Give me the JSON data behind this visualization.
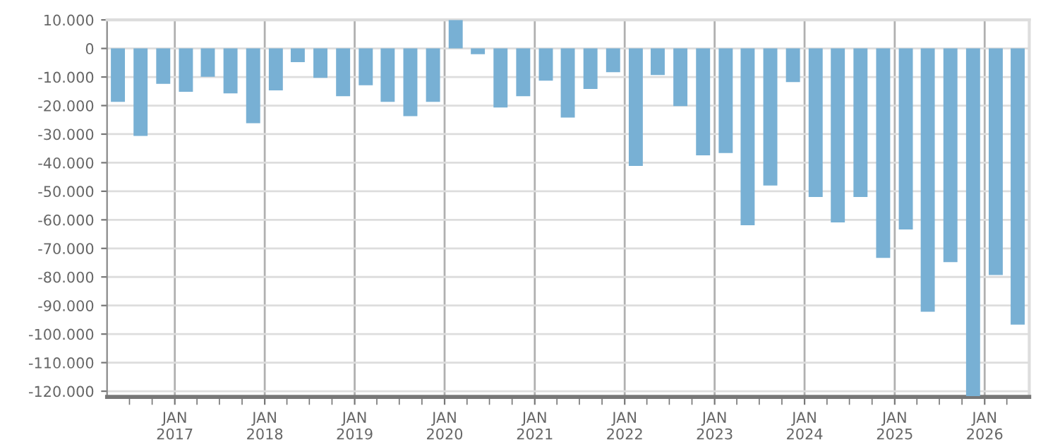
{
  "chart_data": {
    "type": "bar",
    "x": [
      "2016-05-15",
      "2016-08-15",
      "2016-11-15",
      "2017-02-15",
      "2017-05-15",
      "2017-08-15",
      "2017-11-15",
      "2018-02-15",
      "2018-05-15",
      "2018-08-15",
      "2018-11-15",
      "2019-02-15",
      "2019-05-15",
      "2019-08-15",
      "2019-11-15",
      "2020-02-15",
      "2020-05-15",
      "2020-08-15",
      "2020-11-15",
      "2021-02-15",
      "2021-05-15",
      "2021-08-15",
      "2021-11-15",
      "2022-02-15",
      "2022-05-15",
      "2022-08-15",
      "2022-11-15",
      "2023-02-15",
      "2023-05-15",
      "2023-08-15",
      "2023-11-15",
      "2024-02-15",
      "2024-05-15",
      "2024-08-15",
      "2024-11-15",
      "2025-02-15",
      "2025-05-15",
      "2025-08-15",
      "2025-11-15",
      "2026-02-15",
      "2026-05-15"
    ],
    "values": [
      -18700,
      -30600,
      -12400,
      -15200,
      -9900,
      -15700,
      -26200,
      -14700,
      -4800,
      -10300,
      -16700,
      -12900,
      -18700,
      -23700,
      -18700,
      10000,
      -2000,
      -20700,
      -16700,
      -11300,
      -24200,
      -14200,
      -8300,
      -41100,
      -9300,
      -20200,
      -37400,
      -36600,
      -61900,
      -48000,
      -11800,
      -52000,
      -60900,
      -52000,
      -73300,
      -63400,
      -92200,
      -74800,
      -121700,
      -79300,
      -96700
    ],
    "color": "#78b0d4",
    "xlim": [
      "2016-04-01",
      "2026-07-01"
    ],
    "xticks": [
      {
        "value": "2016-07-01",
        "label": null
      },
      {
        "value": "2016-10-01",
        "label": null
      },
      {
        "value": "2017-01-01",
        "label": "JAN\n2017"
      },
      {
        "value": "2017-04-01",
        "label": null
      },
      {
        "value": "2017-07-01",
        "label": null
      },
      {
        "value": "2017-10-01",
        "label": null
      },
      {
        "value": "2018-01-01",
        "label": "JAN\n2018"
      },
      {
        "value": "2018-04-01",
        "label": null
      },
      {
        "value": "2018-07-01",
        "label": null
      },
      {
        "value": "2018-10-01",
        "label": null
      },
      {
        "value": "2019-01-01",
        "label": "JAN\n2019"
      },
      {
        "value": "2019-04-01",
        "label": null
      },
      {
        "value": "2019-07-01",
        "label": null
      },
      {
        "value": "2019-10-01",
        "label": null
      },
      {
        "value": "2020-01-01",
        "label": "JAN\n2020"
      },
      {
        "value": "2020-04-01",
        "label": null
      },
      {
        "value": "2020-07-01",
        "label": null
      },
      {
        "value": "2020-10-01",
        "label": null
      },
      {
        "value": "2021-01-01",
        "label": "JAN\n2021"
      },
      {
        "value": "2021-04-01",
        "label": null
      },
      {
        "value": "2021-07-01",
        "label": null
      },
      {
        "value": "2021-10-01",
        "label": null
      },
      {
        "value": "2022-01-01",
        "label": "JAN\n2022"
      },
      {
        "value": "2022-04-01",
        "label": null
      },
      {
        "value": "2022-07-01",
        "label": null
      },
      {
        "value": "2022-10-01",
        "label": null
      },
      {
        "value": "2023-01-01",
        "label": "JAN\n2023"
      },
      {
        "value": "2023-04-01",
        "label": null
      },
      {
        "value": "2023-07-01",
        "label": null
      },
      {
        "value": "2023-10-01",
        "label": null
      },
      {
        "value": "2024-01-01",
        "label": "JAN\n2024"
      },
      {
        "value": "2024-04-01",
        "label": null
      },
      {
        "value": "2024-07-01",
        "label": null
      },
      {
        "value": "2024-10-01",
        "label": null
      },
      {
        "value": "2025-01-01",
        "label": "JAN\n2025"
      },
      {
        "value": "2025-04-01",
        "label": null
      },
      {
        "value": "2025-07-01",
        "label": null
      },
      {
        "value": "2025-10-01",
        "label": null
      },
      {
        "value": "2026-01-01",
        "label": "JAN\n2026"
      },
      {
        "value": "2026-04-01",
        "label": null
      }
    ],
    "ylim": [
      -122000,
      10000
    ],
    "yticks": [
      {
        "value": 10000,
        "label": "10.000"
      },
      {
        "value": 0,
        "label": "0"
      },
      {
        "value": -10000,
        "label": "-10.000"
      },
      {
        "value": -20000,
        "label": "-20.000"
      },
      {
        "value": -30000,
        "label": "-30.000"
      },
      {
        "value": -40000,
        "label": "-40.000"
      },
      {
        "value": -50000,
        "label": "-50.000"
      },
      {
        "value": -60000,
        "label": "-60.000"
      },
      {
        "value": -70000,
        "label": "-70.000"
      },
      {
        "value": -80000,
        "label": "-80.000"
      },
      {
        "value": -90000,
        "label": "-90.000"
      },
      {
        "value": -100000,
        "label": "-100.000"
      },
      {
        "value": -110000,
        "label": "-110.000"
      },
      {
        "value": -120000,
        "label": "-120.000"
      }
    ],
    "grid": true
  }
}
